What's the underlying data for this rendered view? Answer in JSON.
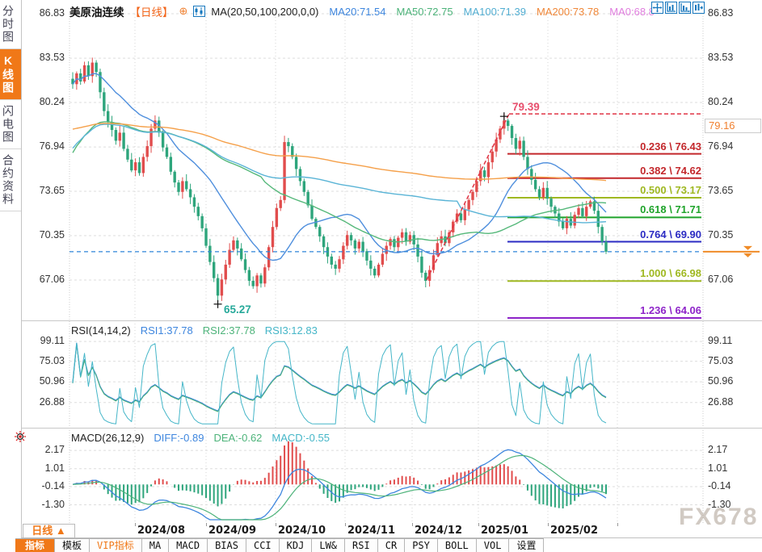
{
  "sidebar": {
    "tabs": [
      {
        "label": "分时图",
        "active": false
      },
      {
        "label": "K线图",
        "active": true
      },
      {
        "label": "闪电图",
        "active": false
      },
      {
        "label": "合约资料",
        "active": false
      }
    ]
  },
  "header": {
    "symbol": "美原油连续",
    "period_tag": "【日线】",
    "plus_icon": "⊕",
    "ma_title": "MA(20,50,100,200,0,0)",
    "ma_values": [
      {
        "label": "MA20:71.54",
        "color": "#3e86de"
      },
      {
        "label": "MA50:72.75",
        "color": "#4db37a"
      },
      {
        "label": "MA100:71.39",
        "color": "#52aed2"
      },
      {
        "label": "MA200:73.78",
        "color": "#f0883a"
      },
      {
        "label": "MA0:68.8",
        "color": "#e07ede"
      }
    ],
    "corner_icons": [
      "crosshair-move",
      "axis-zoom-in",
      "axis-zoom-out",
      "pan-right"
    ]
  },
  "main_axis": {
    "ticks": [
      "86.83",
      "83.53",
      "80.24",
      "76.94",
      "73.65",
      "70.35",
      "67.06"
    ],
    "alert_label": "79.16"
  },
  "rsi_panel": {
    "title": "RSI(14,14,2)",
    "items": [
      {
        "label": "RSI1:37.78",
        "color": "#3e86de"
      },
      {
        "label": "RSI2:37.78",
        "color": "#4db37a"
      },
      {
        "label": "RSI3:12.83",
        "color": "#45b6c8"
      }
    ],
    "ticks": [
      "99.11",
      "75.03",
      "50.96",
      "26.88"
    ]
  },
  "macd_panel": {
    "title": "MACD(26,12,9)",
    "items": [
      {
        "label": "DIFF:-0.89",
        "color": "#3e86de"
      },
      {
        "label": "DEA:-0.62",
        "color": "#4db37a"
      },
      {
        "label": "MACD:-0.55",
        "color": "#45b6c8"
      }
    ],
    "ticks": [
      "2.17",
      "1.01",
      "-0.14",
      "-1.30"
    ]
  },
  "xaxis": {
    "labels": [
      "2024/08",
      "2024/09",
      "2024/10",
      "2024/11",
      "2024/12",
      "2025/01",
      "2025/02"
    ]
  },
  "bottom": {
    "period_button": "日线 ▲",
    "tabs": [
      {
        "label": "指标",
        "style": "active"
      },
      {
        "label": "模板",
        "style": ""
      },
      {
        "label": "VIP指标",
        "style": "vip"
      },
      {
        "label": "MA",
        "style": ""
      },
      {
        "label": "MACD",
        "style": ""
      },
      {
        "label": "BIAS",
        "style": ""
      },
      {
        "label": "CCI",
        "style": ""
      },
      {
        "label": "KDJ",
        "style": ""
      },
      {
        "label": "LW&",
        "style": ""
      },
      {
        "label": "RSI",
        "style": ""
      },
      {
        "label": "CR",
        "style": ""
      },
      {
        "label": "PSY",
        "style": ""
      },
      {
        "label": "BOLL",
        "style": ""
      },
      {
        "label": "VOL",
        "style": ""
      },
      {
        "label": "设置",
        "style": ""
      }
    ]
  },
  "watermark": "FX678",
  "chart_data": {
    "type": "candlestick",
    "symbol": "美原油连续",
    "period": "日线",
    "x_labels": [
      "2024/08",
      "2024/09",
      "2024/10",
      "2024/11",
      "2024/12",
      "2025/01",
      "2025/02"
    ],
    "price_axis_ticks": [
      86.83,
      83.53,
      80.24,
      76.94,
      73.65,
      70.35,
      67.06
    ],
    "closes": [
      81.6,
      82.4,
      81.8,
      83.0,
      82.2,
      83.2,
      82.5,
      81.0,
      79.6,
      78.8,
      78.2,
      77.4,
      78.0,
      76.8,
      76.0,
      75.2,
      75.8,
      75.0,
      76.2,
      77.0,
      78.3,
      78.9,
      78.0,
      76.9,
      76.2,
      75.1,
      74.3,
      73.6,
      74.4,
      73.8,
      73.2,
      72.5,
      71.8,
      70.9,
      69.6,
      68.4,
      67.2,
      65.9,
      67.1,
      68.2,
      69.3,
      70.0,
      69.4,
      68.6,
      67.8,
      67.0,
      66.6,
      67.4,
      66.8,
      68.0,
      69.5,
      71.0,
      72.4,
      73.0,
      77.3,
      77.0,
      76.2,
      75.3,
      74.4,
      73.6,
      72.6,
      71.6,
      71.0,
      70.3,
      69.5,
      68.8,
      68.2,
      67.9,
      68.6,
      69.6,
      70.4,
      70.0,
      69.4,
      69.9,
      69.2,
      68.5,
      67.9,
      67.4,
      68.2,
      69.0,
      69.6,
      70.1,
      69.5,
      70.2,
      70.6,
      69.9,
      70.4,
      69.7,
      68.8,
      67.6,
      67.0,
      67.8,
      68.9,
      69.8,
      70.3,
      69.8,
      70.6,
      71.4,
      72.0,
      71.5,
      72.3,
      73.0,
      73.6,
      74.4,
      75.2,
      74.7,
      75.8,
      76.6,
      77.5,
      78.3,
      78.9,
      78.5,
      77.6,
      76.8,
      77.4,
      76.2,
      75.3,
      74.5,
      73.8,
      73.2,
      73.9,
      73.1,
      72.5,
      72.0,
      71.4,
      70.9,
      71.6,
      71.1,
      71.9,
      72.4,
      71.8,
      72.5,
      72.9,
      72.2,
      71.0,
      69.9,
      69.16
    ],
    "marked_high": {
      "index": 110,
      "value": 79.39,
      "label": "79.39"
    },
    "marked_low": {
      "index": 37,
      "value": 65.27,
      "label": "65.27"
    },
    "last_price": 69.16,
    "alert_price_label": "79.16",
    "moving_averages": {
      "MA20": 71.54,
      "MA50": 72.75,
      "MA100": 71.39,
      "MA200": 73.78,
      "MA0": 68.8
    },
    "fibonacci": [
      {
        "ratio": "0.236",
        "price": "76.43",
        "value": 76.43,
        "color": "#c3272b"
      },
      {
        "ratio": "0.382",
        "price": "74.62",
        "value": 74.62,
        "color": "#c3272b"
      },
      {
        "ratio": "0.500",
        "price": "73.17",
        "value": 73.17,
        "color": "#9fb821"
      },
      {
        "ratio": "0.618",
        "price": "71.71",
        "value": 71.71,
        "color": "#1fa32a"
      },
      {
        "ratio": "0.764",
        "price": "69.90",
        "value": 69.9,
        "color": "#2b2bc3"
      },
      {
        "ratio": "1.000",
        "price": "66.98",
        "value": 66.98,
        "color": "#9fb821"
      },
      {
        "ratio": "1.236",
        "price": "64.06",
        "value": 64.06,
        "color": "#8e24c9"
      }
    ],
    "rsi": {
      "params": "(14,14,2)",
      "RSI1": 37.78,
      "RSI2": 37.78,
      "RSI3": 12.83,
      "axis_ticks": [
        99.11,
        75.03,
        50.96,
        26.88
      ]
    },
    "macd": {
      "params": "(26,12,9)",
      "DIFF": -0.89,
      "DEA": -0.62,
      "MACD": -0.55,
      "axis_ticks": [
        2.17,
        1.01,
        -0.14,
        -1.3
      ]
    },
    "colors": {
      "up_candle": "#e14d4d",
      "down_candle": "#2ea57c",
      "ma20": "#4f8fdd",
      "ma50": "#55b87a",
      "ma100": "#5ab4d6",
      "ma200": "#f5a04a",
      "trend_annotation": "#e03445",
      "last_price_line": "#2f84d8",
      "alert": "#f08c28"
    }
  }
}
